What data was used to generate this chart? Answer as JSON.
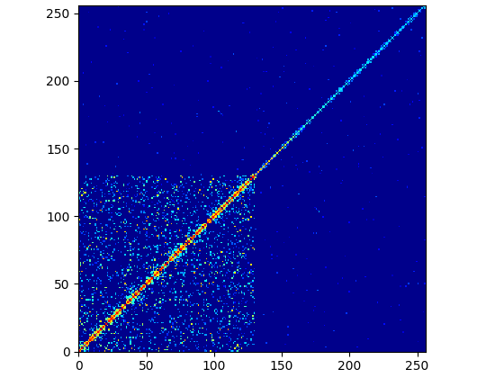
{
  "n": 256,
  "seed": 1234,
  "xlim": [
    0,
    256
  ],
  "ylim": [
    0,
    256
  ],
  "xticks": [
    0,
    50,
    100,
    150,
    200,
    250
  ],
  "yticks": [
    0,
    50,
    100,
    150,
    200,
    250
  ],
  "figsize": [
    5.6,
    4.2
  ],
  "dpi": 100,
  "cmap_points": [
    [
      0.0,
      "#00008B"
    ],
    [
      0.05,
      "#0000FF"
    ],
    [
      0.3,
      "#00FFFF"
    ],
    [
      0.55,
      "#FFFF00"
    ],
    [
      0.75,
      "#FF8000"
    ],
    [
      1.0,
      "#FF0000"
    ]
  ]
}
